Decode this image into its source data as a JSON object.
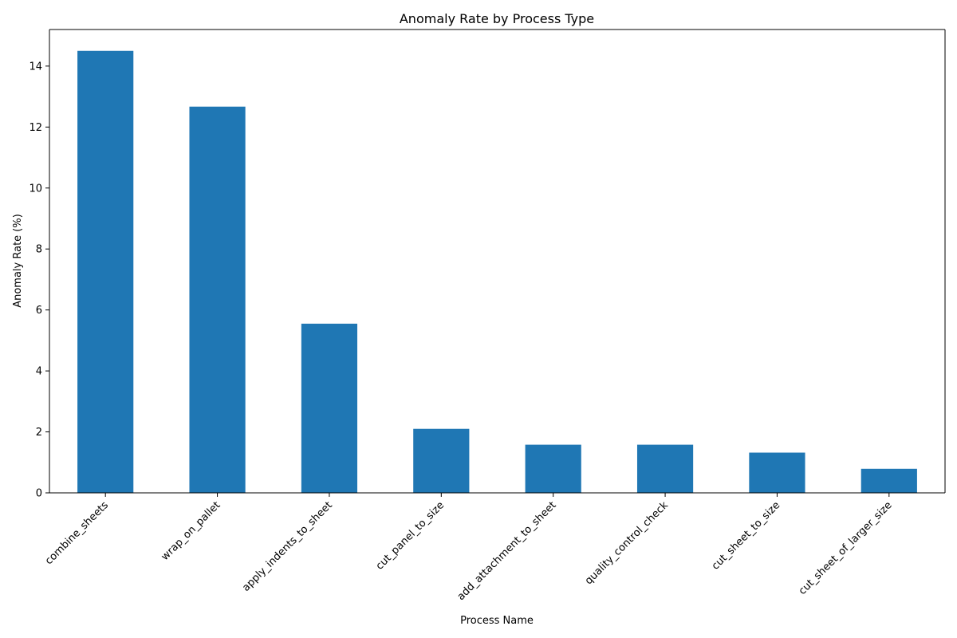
{
  "chart_data": {
    "type": "bar",
    "title": "Anomaly Rate by Process Type",
    "xlabel": "Process Name",
    "ylabel": "Anomaly Rate (%)",
    "categories": [
      "combine_sheets",
      "wrap_on_pallet",
      "apply_indents_to_sheet",
      "cut_panel_to_size",
      "add_attachment_to_sheet",
      "quality_control_check",
      "cut_sheet_to_size",
      "cut_sheet_of_larger_size"
    ],
    "values": [
      14.5,
      12.67,
      5.55,
      2.1,
      1.58,
      1.58,
      1.32,
      0.79
    ],
    "yticks": [
      0,
      2,
      4,
      6,
      8,
      10,
      12,
      14
    ],
    "ylim": [
      0,
      15.2
    ],
    "grid": false,
    "bar_color": "#1f77b4"
  }
}
